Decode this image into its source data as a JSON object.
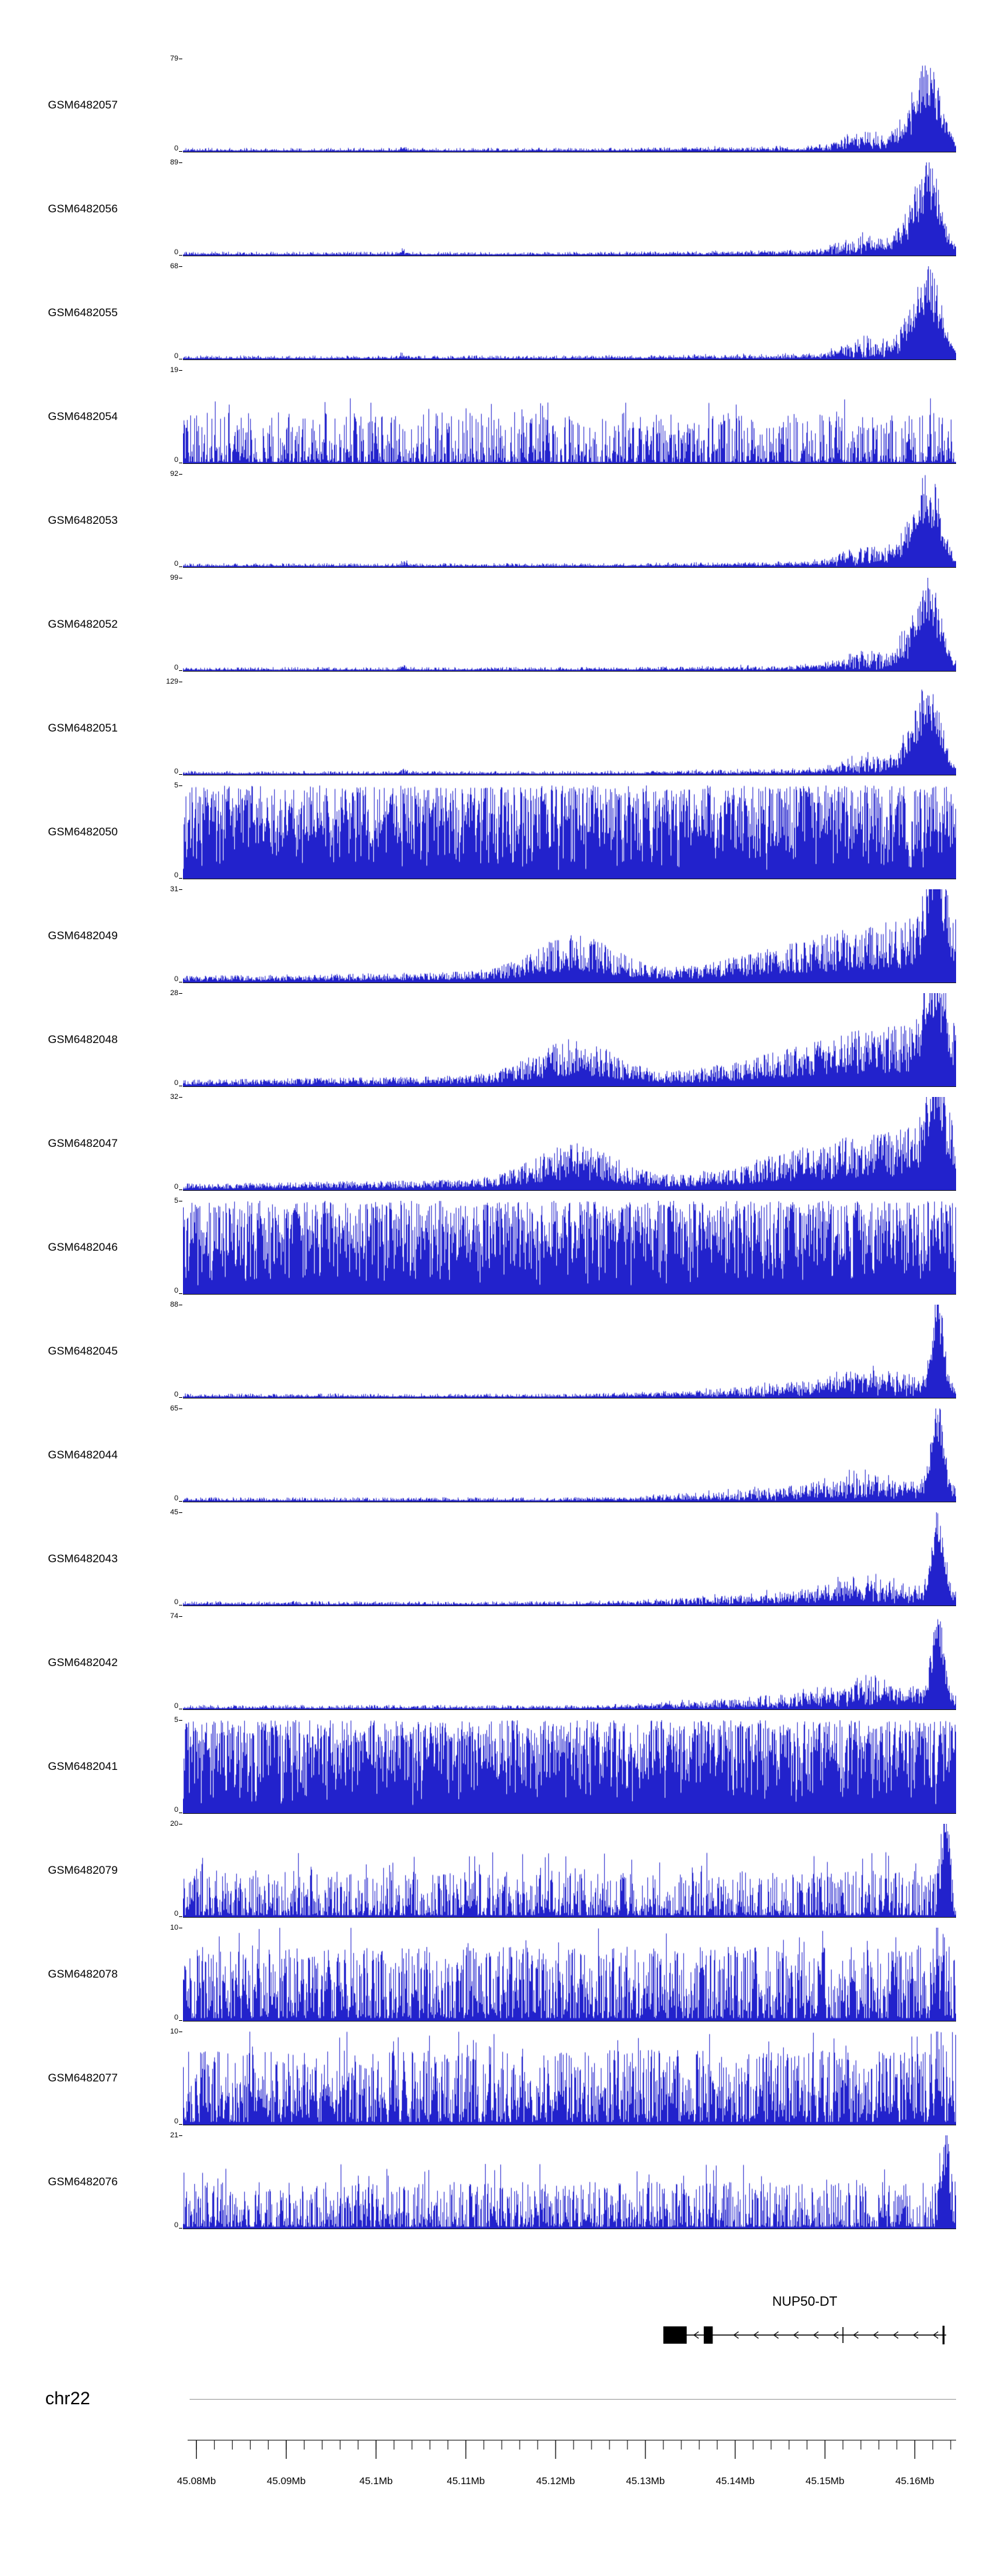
{
  "page": {
    "background": "#ffffff"
  },
  "chart_data": {
    "type": "area",
    "description": "Genome-browser read-coverage histogram tracks for 21 GEO samples over the NUP50-DT locus on chr22 (45.08-45.16 Mb)",
    "signal_color": "#2222cc",
    "axis_color": "#000000",
    "view": {
      "chromosome": "chr22",
      "start_mb": 45.0785,
      "end_mb": 45.1646
    },
    "tracks": [
      {
        "name": "GSM6482057",
        "ymin": 0,
        "ymax": 79,
        "profile": "sharp-right-peak",
        "seed": 11
      },
      {
        "name": "GSM6482056",
        "ymin": 0,
        "ymax": 89,
        "profile": "sharp-right-peak",
        "seed": 22
      },
      {
        "name": "GSM6482055",
        "ymin": 0,
        "ymax": 68,
        "profile": "sharp-right-peak",
        "seed": 33
      },
      {
        "name": "GSM6482054",
        "ymin": 0,
        "ymax": 19,
        "profile": "moderate-noise",
        "seed": 44
      },
      {
        "name": "GSM6482053",
        "ymin": 0,
        "ymax": 92,
        "profile": "sharp-right-peak",
        "seed": 55
      },
      {
        "name": "GSM6482052",
        "ymin": 0,
        "ymax": 99,
        "profile": "sharp-right-peak",
        "seed": 66
      },
      {
        "name": "GSM6482051",
        "ymin": 0,
        "ymax": 129,
        "profile": "sharp-right-peak",
        "seed": 77
      },
      {
        "name": "GSM6482050",
        "ymin": 0,
        "ymax": 5,
        "profile": "dense-uniform",
        "seed": 88
      },
      {
        "name": "GSM6482049",
        "ymin": 0,
        "ymax": 31,
        "profile": "gradient-right",
        "seed": 99
      },
      {
        "name": "GSM6482048",
        "ymin": 0,
        "ymax": 28,
        "profile": "gradient-right",
        "seed": 110
      },
      {
        "name": "GSM6482047",
        "ymin": 0,
        "ymax": 32,
        "profile": "gradient-right",
        "seed": 121
      },
      {
        "name": "GSM6482046",
        "ymin": 0,
        "ymax": 5,
        "profile": "dense-uniform",
        "seed": 132
      },
      {
        "name": "GSM6482045",
        "ymin": 0,
        "ymax": 88,
        "profile": "right-end-peak",
        "seed": 143
      },
      {
        "name": "GSM6482044",
        "ymin": 0,
        "ymax": 65,
        "profile": "right-end-peak",
        "seed": 154
      },
      {
        "name": "GSM6482043",
        "ymin": 0,
        "ymax": 45,
        "profile": "right-end-peak",
        "seed": 165
      },
      {
        "name": "GSM6482042",
        "ymin": 0,
        "ymax": 74,
        "profile": "right-end-peak",
        "seed": 176
      },
      {
        "name": "GSM6482041",
        "ymin": 0,
        "ymax": 5,
        "profile": "dense-uniform",
        "seed": 187
      },
      {
        "name": "GSM6482079",
        "ymin": 0,
        "ymax": 20,
        "profile": "noisy-right-peak",
        "seed": 198
      },
      {
        "name": "GSM6482078",
        "ymin": 0,
        "ymax": 10,
        "profile": "noisy-uniform",
        "seed": 209
      },
      {
        "name": "GSM6482077",
        "ymin": 0,
        "ymax": 10,
        "profile": "noisy-uniform",
        "seed": 220
      },
      {
        "name": "GSM6482076",
        "ymin": 0,
        "ymax": 21,
        "profile": "noisy-right-peak",
        "seed": 231
      }
    ],
    "gene_track": {
      "label": "NUP50-DT",
      "strand": "-",
      "start_mb": 45.132,
      "end_mb": 45.1635,
      "exons_mb": [
        [
          45.132,
          45.1346
        ],
        [
          45.1365,
          45.1375
        ]
      ],
      "tick_marks_mb": [
        45.152
      ],
      "end_bar_mb": 45.1632,
      "color": "#000000"
    },
    "genome_axis": {
      "chromosome_label": "chr22",
      "tick_values_mb": [
        45.08,
        45.09,
        45.1,
        45.11,
        45.12,
        45.13,
        45.14,
        45.15,
        45.16
      ],
      "tick_labels": [
        "45.08Mb",
        "45.09Mb",
        "45.1Mb",
        "45.11Mb",
        "45.12Mb",
        "45.13Mb",
        "45.14Mb",
        "45.15Mb",
        "45.16Mb"
      ],
      "minor_tick_step_mb": 0.002
    }
  }
}
